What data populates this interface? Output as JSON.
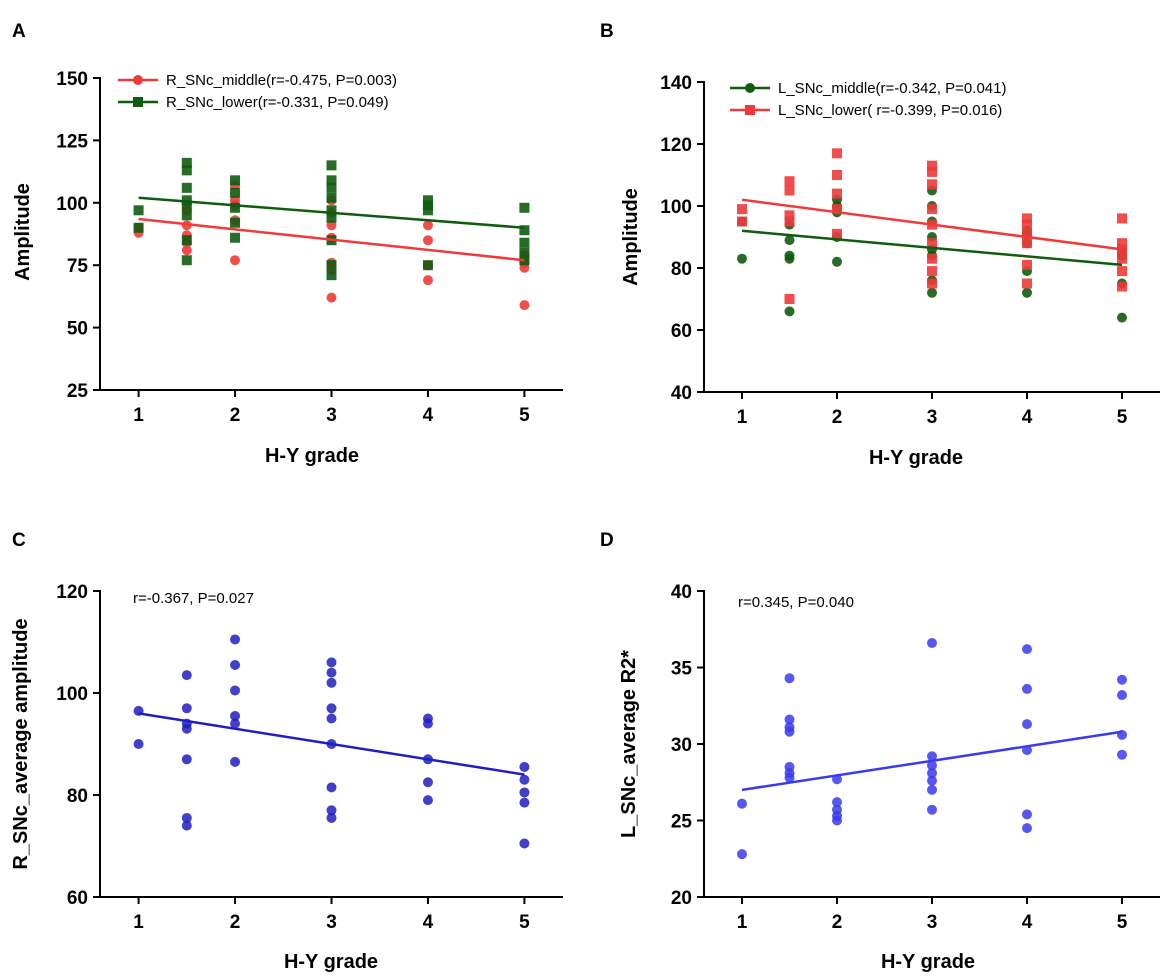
{
  "chart_data": [
    {
      "panel": "A",
      "type": "scatter",
      "xlabel": "H-Y grade",
      "ylabel": "Amplitude",
      "xlim": [
        0.6,
        5.4
      ],
      "ylim": [
        25,
        150
      ],
      "xticks": [
        1,
        2,
        3,
        4,
        5
      ],
      "yticks": [
        25,
        50,
        75,
        100,
        125,
        150
      ],
      "legend_position": "top-left",
      "series": [
        {
          "name": "R_SNc_middle(r=-0.475, P=0.003)",
          "marker": "circle",
          "color": "#f03a3a",
          "fit": [
            93.5,
            77
          ],
          "points": [
            [
              1,
              88
            ],
            [
              1,
              90
            ],
            [
              1.5,
              97
            ],
            [
              1.5,
              91
            ],
            [
              1.5,
              87
            ],
            [
              1.5,
              84
            ],
            [
              1.5,
              81
            ],
            [
              2,
              107
            ],
            [
              2,
              101
            ],
            [
              2,
              99
            ],
            [
              2,
              93
            ],
            [
              2,
              77
            ],
            [
              3,
              101
            ],
            [
              3,
              96
            ],
            [
              3,
              91
            ],
            [
              3,
              86
            ],
            [
              3,
              76
            ],
            [
              3,
              73
            ],
            [
              3,
              62
            ],
            [
              4,
              91
            ],
            [
              4,
              85
            ],
            [
              4,
              75
            ],
            [
              4,
              69
            ],
            [
              5,
              79
            ],
            [
              5,
              76
            ],
            [
              5,
              74
            ],
            [
              5,
              59
            ]
          ]
        },
        {
          "name": "R_SNc_lower(r=-0.331, P=0.049)",
          "marker": "square",
          "color": "#0f5c0f",
          "fit": [
            102,
            90
          ],
          "points": [
            [
              1,
              97
            ],
            [
              1,
              90
            ],
            [
              1.5,
              116
            ],
            [
              1.5,
              113
            ],
            [
              1.5,
              106
            ],
            [
              1.5,
              101
            ],
            [
              1.5,
              99
            ],
            [
              1.5,
              95
            ],
            [
              1.5,
              85
            ],
            [
              1.5,
              77
            ],
            [
              2,
              109
            ],
            [
              2,
              104
            ],
            [
              2,
              98
            ],
            [
              2,
              92
            ],
            [
              2,
              86
            ],
            [
              3,
              115
            ],
            [
              3,
              109
            ],
            [
              3,
              106
            ],
            [
              3,
              102
            ],
            [
              3,
              97
            ],
            [
              3,
              94
            ],
            [
              3,
              85
            ],
            [
              3,
              75
            ],
            [
              3,
              71
            ],
            [
              4,
              101
            ],
            [
              4,
              99
            ],
            [
              4,
              97
            ],
            [
              4,
              75
            ],
            [
              5,
              98
            ],
            [
              5,
              89
            ],
            [
              5,
              84
            ],
            [
              5,
              80
            ],
            [
              5,
              77
            ]
          ]
        }
      ]
    },
    {
      "panel": "B",
      "type": "scatter",
      "xlabel": "H-Y grade",
      "ylabel": "Amplitude",
      "xlim": [
        0.6,
        5.4
      ],
      "ylim": [
        40,
        140
      ],
      "xticks": [
        1,
        2,
        3,
        4,
        5
      ],
      "yticks": [
        40,
        60,
        80,
        100,
        120,
        140
      ],
      "legend_position": "top-left",
      "series": [
        {
          "name": "L_SNc_middle(r=-0.342, P=0.041)",
          "marker": "circle",
          "color": "#0f5c0f",
          "fit": [
            92,
            81
          ],
          "points": [
            [
              1,
              95
            ],
            [
              1,
              83
            ],
            [
              1.5,
              94
            ],
            [
              1.5,
              89
            ],
            [
              1.5,
              84
            ],
            [
              1.5,
              83
            ],
            [
              1.5,
              66
            ],
            [
              2,
              102
            ],
            [
              2,
              100
            ],
            [
              2,
              98
            ],
            [
              2,
              90
            ],
            [
              2,
              82
            ],
            [
              3,
              105
            ],
            [
              3,
              100
            ],
            [
              3,
              95
            ],
            [
              3,
              90
            ],
            [
              3,
              86
            ],
            [
              3,
              84
            ],
            [
              3,
              76
            ],
            [
              3,
              72
            ],
            [
              4,
              92
            ],
            [
              4,
              91
            ],
            [
              4,
              88
            ],
            [
              4,
              79
            ],
            [
              4,
              72
            ],
            [
              5,
              86
            ],
            [
              5,
              84
            ],
            [
              5,
              75
            ],
            [
              5,
              64
            ]
          ]
        },
        {
          "name": "L_SNc_lower( r=-0.399, P=0.016)",
          "marker": "square",
          "color": "#f03a3a",
          "fit": [
            102,
            86
          ],
          "points": [
            [
              1,
              99
            ],
            [
              1,
              95
            ],
            [
              1.5,
              108
            ],
            [
              1.5,
              105
            ],
            [
              1.5,
              97
            ],
            [
              1.5,
              95
            ],
            [
              1.5,
              70
            ],
            [
              2,
              117
            ],
            [
              2,
              110
            ],
            [
              2,
              104
            ],
            [
              2,
              99
            ],
            [
              2,
              91
            ],
            [
              3,
              113
            ],
            [
              3,
              111
            ],
            [
              3,
              107
            ],
            [
              3,
              99
            ],
            [
              3,
              94
            ],
            [
              3,
              88
            ],
            [
              3,
              83
            ],
            [
              3,
              79
            ],
            [
              3,
              75
            ],
            [
              4,
              96
            ],
            [
              4,
              94
            ],
            [
              4,
              91
            ],
            [
              4,
              88
            ],
            [
              4,
              81
            ],
            [
              4,
              75
            ],
            [
              5,
              96
            ],
            [
              5,
              88
            ],
            [
              5,
              86
            ],
            [
              5,
              83
            ],
            [
              5,
              79
            ],
            [
              5,
              74
            ]
          ]
        }
      ]
    },
    {
      "panel": "C",
      "type": "scatter",
      "xlabel": "H-Y grade",
      "ylabel": "R_SNc_average amplitude",
      "xlim": [
        0.6,
        5.4
      ],
      "ylim": [
        60,
        120
      ],
      "xticks": [
        1,
        2,
        3,
        4,
        5
      ],
      "yticks": [
        60,
        80,
        100,
        120
      ],
      "annotation": "r=-0.367, P=0.027",
      "series": [
        {
          "name": "R_SNc_average amplitude",
          "marker": "circle",
          "color": "#1f1fbf",
          "fit": [
            96,
            84
          ],
          "points": [
            [
              1,
              96.5
            ],
            [
              1,
              90
            ],
            [
              1.5,
              103.5
            ],
            [
              1.5,
              97
            ],
            [
              1.5,
              94
            ],
            [
              1.5,
              93
            ],
            [
              1.5,
              87
            ],
            [
              1.5,
              75.5
            ],
            [
              1.5,
              74
            ],
            [
              2,
              110.5
            ],
            [
              2,
              105.5
            ],
            [
              2,
              100.5
            ],
            [
              2,
              95.5
            ],
            [
              2,
              94
            ],
            [
              2,
              86.5
            ],
            [
              3,
              106
            ],
            [
              3,
              104
            ],
            [
              3,
              102
            ],
            [
              3,
              97
            ],
            [
              3,
              95
            ],
            [
              3,
              90
            ],
            [
              3,
              81.5
            ],
            [
              3,
              77
            ],
            [
              3,
              75.5
            ],
            [
              4,
              95
            ],
            [
              4,
              94
            ],
            [
              4,
              87
            ],
            [
              4,
              82.5
            ],
            [
              4,
              79
            ],
            [
              5,
              85.5
            ],
            [
              5,
              83
            ],
            [
              5,
              80.5
            ],
            [
              5,
              78.5
            ],
            [
              5,
              70.5
            ]
          ]
        }
      ]
    },
    {
      "panel": "D",
      "type": "scatter",
      "xlabel": "H-Y grade",
      "ylabel": "L_SNc_average R2*",
      "xlim": [
        0.6,
        5.4
      ],
      "ylim": [
        20,
        40
      ],
      "xticks": [
        1,
        2,
        3,
        4,
        5
      ],
      "yticks": [
        20,
        25,
        30,
        35,
        40
      ],
      "annotation": "r=0.345, P=0.040",
      "series": [
        {
          "name": "L_SNc_average R2*",
          "marker": "circle",
          "color": "#3a3aef",
          "fit": [
            27,
            30.8
          ],
          "points": [
            [
              1,
              26.1
            ],
            [
              1,
              22.8
            ],
            [
              1.5,
              34.3
            ],
            [
              1.5,
              31.6
            ],
            [
              1.5,
              31.1
            ],
            [
              1.5,
              30.8
            ],
            [
              1.5,
              28.5
            ],
            [
              1.5,
              28.1
            ],
            [
              1.5,
              27.8
            ],
            [
              2,
              27.7
            ],
            [
              2,
              26.2
            ],
            [
              2,
              25.7
            ],
            [
              2,
              25.3
            ],
            [
              2,
              25
            ],
            [
              3,
              36.6
            ],
            [
              3,
              29.2
            ],
            [
              3,
              28.6
            ],
            [
              3,
              28.1
            ],
            [
              3,
              27.6
            ],
            [
              3,
              27
            ],
            [
              3,
              25.7
            ],
            [
              4,
              36.2
            ],
            [
              4,
              33.6
            ],
            [
              4,
              31.3
            ],
            [
              4,
              29.6
            ],
            [
              4,
              25.4
            ],
            [
              4,
              24.5
            ],
            [
              5,
              34.2
            ],
            [
              5,
              33.2
            ],
            [
              5,
              30.6
            ],
            [
              5,
              29.3
            ]
          ]
        }
      ]
    }
  ]
}
